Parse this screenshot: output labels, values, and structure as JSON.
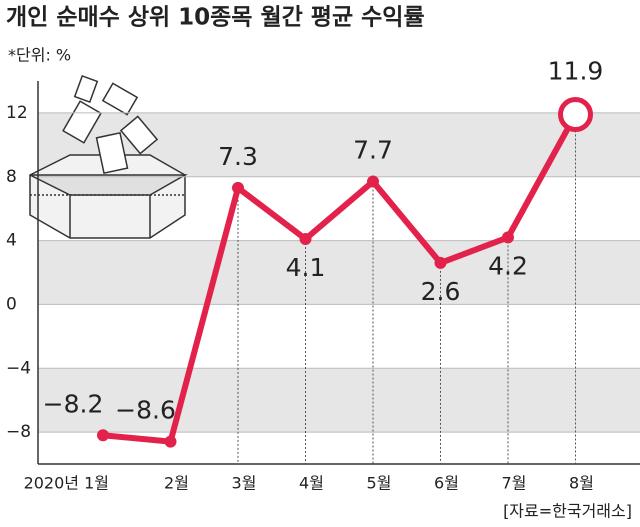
{
  "chart_data": {
    "type": "line",
    "title": "개인 순매수 상위 10종목 월간 평균 수익률",
    "subtitle": "*단위: %",
    "source": "[자료=한국거래소]",
    "categories": [
      "2020년 1월",
      "2월",
      "3월",
      "4월",
      "5월",
      "6월",
      "7월",
      "8월"
    ],
    "values": [
      -8.2,
      -8.6,
      7.3,
      4.1,
      7.7,
      2.6,
      4.2,
      11.9
    ],
    "value_labels": [
      "−8.2",
      "−8.6",
      "7.3",
      "4.1",
      "7.7",
      "2.6",
      "4.2",
      "11.9"
    ],
    "color": "#e3224b",
    "ylim": [
      -10,
      14
    ],
    "yticks": [
      {
        "value": -8,
        "label": "−8"
      },
      {
        "value": -4,
        "label": "−4"
      },
      0,
      4,
      8,
      12
    ],
    "grid": true
  }
}
